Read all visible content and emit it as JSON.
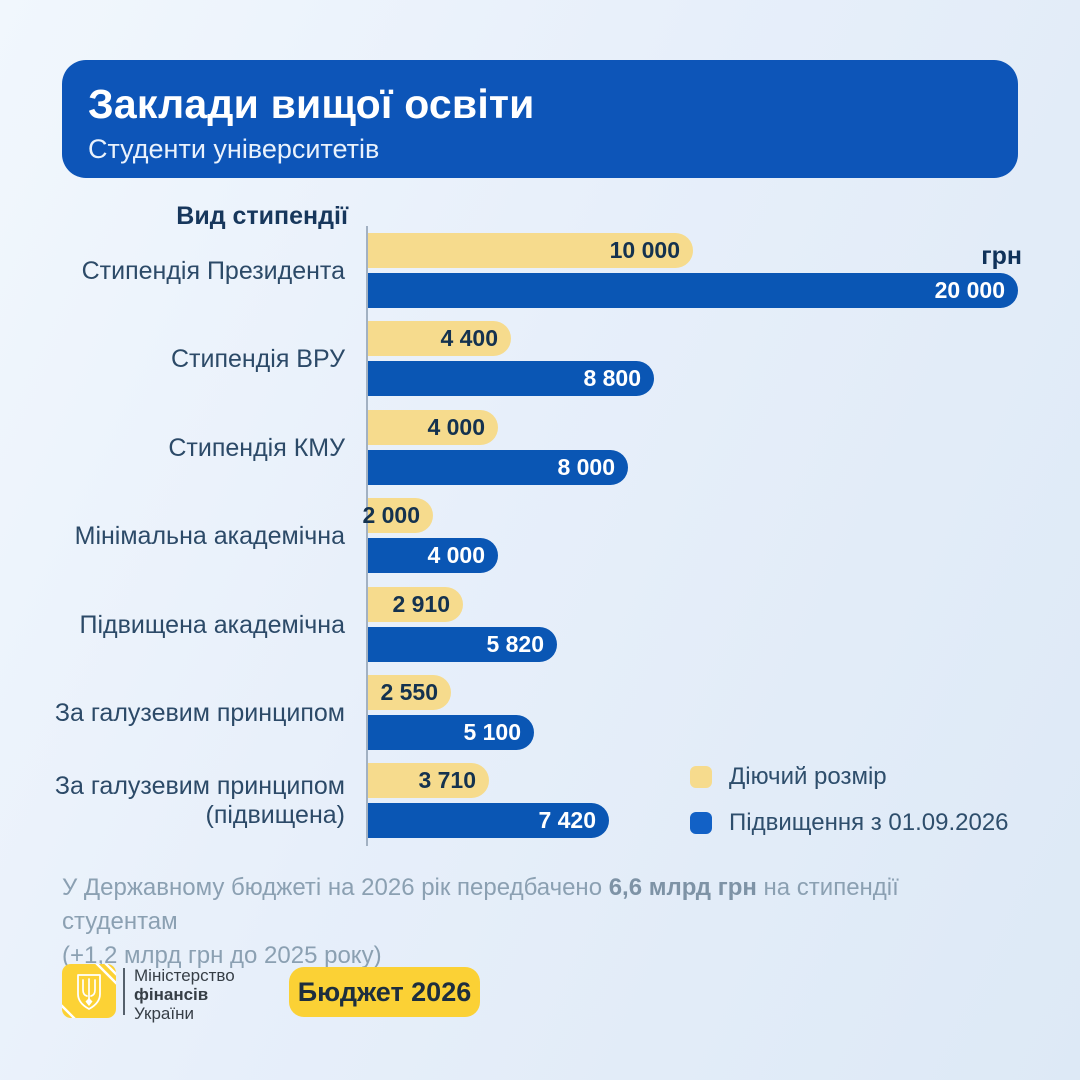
{
  "header": {
    "title": "Заклади вищої освіти",
    "subtitle": "Студенти університетів"
  },
  "chart_data": {
    "type": "bar",
    "orientation": "horizontal",
    "title": "Вид стипендії",
    "unit": "грн",
    "xlim": [
      0,
      20000
    ],
    "grid": false,
    "legend_position": "bottom-right",
    "categories": [
      "Стипендія Президента",
      "Стипендія ВРУ",
      "Стипендія КМУ",
      "Мінімальна академічна",
      "Підвищена академічна",
      "За галузевим принципом",
      "За галузевим принципом (підвищена)"
    ],
    "series": [
      {
        "name": "Діючий розмір",
        "color": "#f6db8d",
        "label_color": "#14324f",
        "values": [
          10000,
          4400,
          4000,
          2000,
          2910,
          2550,
          3710
        ],
        "value_labels": [
          "10 000",
          "4 400",
          "4 000",
          "2 000",
          "2 910",
          "2 550",
          "3 710"
        ]
      },
      {
        "name": "Підвищення з 01.09.2026",
        "color": "#0a56b4",
        "label_color": "#ffffff",
        "values": [
          20000,
          8800,
          8000,
          4000,
          5820,
          5100,
          7420
        ],
        "value_labels": [
          "20 000",
          "8 800",
          "8 000",
          "4 000",
          "5 820",
          "5 100",
          "7 420"
        ]
      }
    ]
  },
  "legend": {
    "items": [
      {
        "label": "Діючий розмір",
        "color": "#f6db8d"
      },
      {
        "label": "Підвищення з 01.09.2026",
        "color": "#1261c6"
      }
    ]
  },
  "footnote": {
    "prefix": "У Державному бюджеті на 2026 рік передбачено ",
    "bold": "6,6 млрд грн",
    "suffix": " на стипендії студентам",
    "line2": "(+1,2 млрд грн до 2025 року)"
  },
  "branding": {
    "emblem": "tryzub-icon",
    "ministry_line1": "Міністерство",
    "ministry_line2": "фінансів",
    "ministry_line3": "України",
    "button_label": "Бюджет 2026"
  },
  "colors": {
    "header_bg": "#0d55b8",
    "background_start": "#f1f7fd",
    "background_end": "#dde9f6",
    "axis_line": "#a2b1c2",
    "category_text": "#2c4a68",
    "footnote_text": "#8ba0b2",
    "brand_yellow": "#fcd235"
  }
}
